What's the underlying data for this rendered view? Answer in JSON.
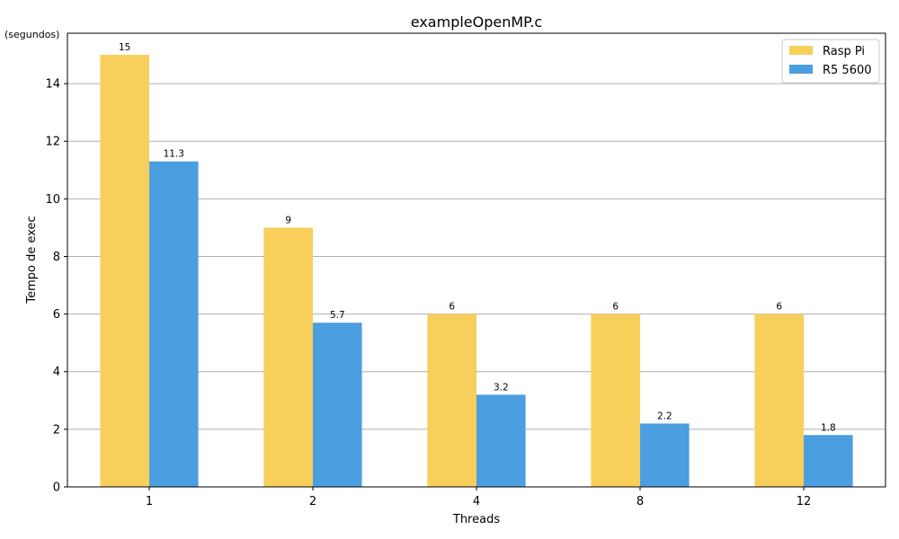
{
  "chart_data": {
    "type": "bar",
    "title": "exampleOpenMP.c",
    "xlabel": "Threads",
    "ylabel": "Tempo de exec",
    "yunit_label": "(segundos)",
    "categories": [
      "1",
      "2",
      "4",
      "8",
      "12"
    ],
    "series": [
      {
        "name": "Rasp Pi",
        "values": [
          15,
          9,
          6,
          6,
          6
        ],
        "value_labels": [
          "15",
          "9",
          "6",
          "6",
          "6"
        ],
        "color": "#f7cf5a"
      },
      {
        "name": "R5 5600",
        "values": [
          11.3,
          5.7,
          3.2,
          2.2,
          1.8
        ],
        "value_labels": [
          "11.3",
          "5.7",
          "3.2",
          "2.2",
          "1.8"
        ],
        "color": "#4b9fe1"
      }
    ],
    "ylim": [
      0,
      15.75
    ],
    "yticks": [
      0,
      2,
      4,
      6,
      8,
      10,
      12,
      14
    ],
    "grid": "horizontal",
    "legend_position": "top-right"
  }
}
